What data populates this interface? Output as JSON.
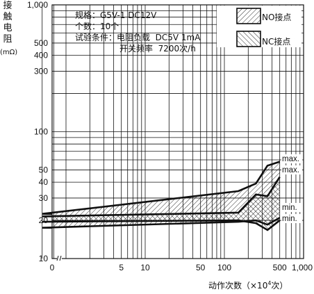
{
  "chart_data": {
    "type": "area",
    "title": "",
    "xlabel": "动作次数（×10⁴次）",
    "ylabel": "接触电阻",
    "ylabel_unit": "(mΩ)",
    "x_scale": "log (broken axis at 0)",
    "y_scale": "log",
    "xlim": [
      0,
      1000
    ],
    "ylim": [
      10,
      1000
    ],
    "x_ticks": [
      {
        "value": 0,
        "label": "0"
      },
      {
        "value": 5,
        "label": "5"
      },
      {
        "value": 10,
        "label": "10"
      },
      {
        "value": 50,
        "label": "50"
      },
      {
        "value": 100,
        "label": "100"
      },
      {
        "value": 500,
        "label": "500"
      },
      {
        "value": 1000,
        "label": "1,000"
      }
    ],
    "y_ticks": [
      {
        "value": 10,
        "label": "10"
      },
      {
        "value": 20,
        "label": "20"
      },
      {
        "value": 30,
        "label": "30"
      },
      {
        "value": 40,
        "label": "40"
      },
      {
        "value": 50,
        "label": "50"
      },
      {
        "value": 100,
        "label": "100"
      },
      {
        "value": 300,
        "label": "300"
      },
      {
        "value": 400,
        "label": "400"
      },
      {
        "value": 500,
        "label": "500"
      },
      {
        "value": 1000,
        "label": "1,000"
      }
    ],
    "grid": true,
    "series": [
      {
        "name": "NO接点",
        "hatch": "forward-diagonal",
        "upper": {
          "label": "max.",
          "x": [
            0.5,
            150,
            250,
            350,
            500
          ],
          "y": [
            22.5,
            34,
            39,
            54,
            58
          ]
        },
        "lower": {
          "label": "min.",
          "x": [
            0.5,
            150,
            250,
            350,
            500
          ],
          "y": [
            17.5,
            19.5,
            20,
            18.5,
            21
          ]
        }
      },
      {
        "name": "NC接点",
        "hatch": "back-diagonal",
        "upper": {
          "label": "max.",
          "x": [
            0.5,
            150,
            250,
            350,
            500
          ],
          "y": [
            21.5,
            23,
            32,
            31,
            44
          ]
        },
        "lower": {
          "label": "min.",
          "x": [
            0.5,
            150,
            250,
            350,
            500
          ],
          "y": [
            19.5,
            20,
            19,
            16.8,
            20
          ]
        }
      }
    ],
    "annotations": [
      "规格：G5V-1 DC12V",
      "个数：10个",
      "试验条件：电阻负载  DC5V 1mA",
      "开关频率  7200次/h"
    ],
    "legend_placement": "top-right"
  }
}
